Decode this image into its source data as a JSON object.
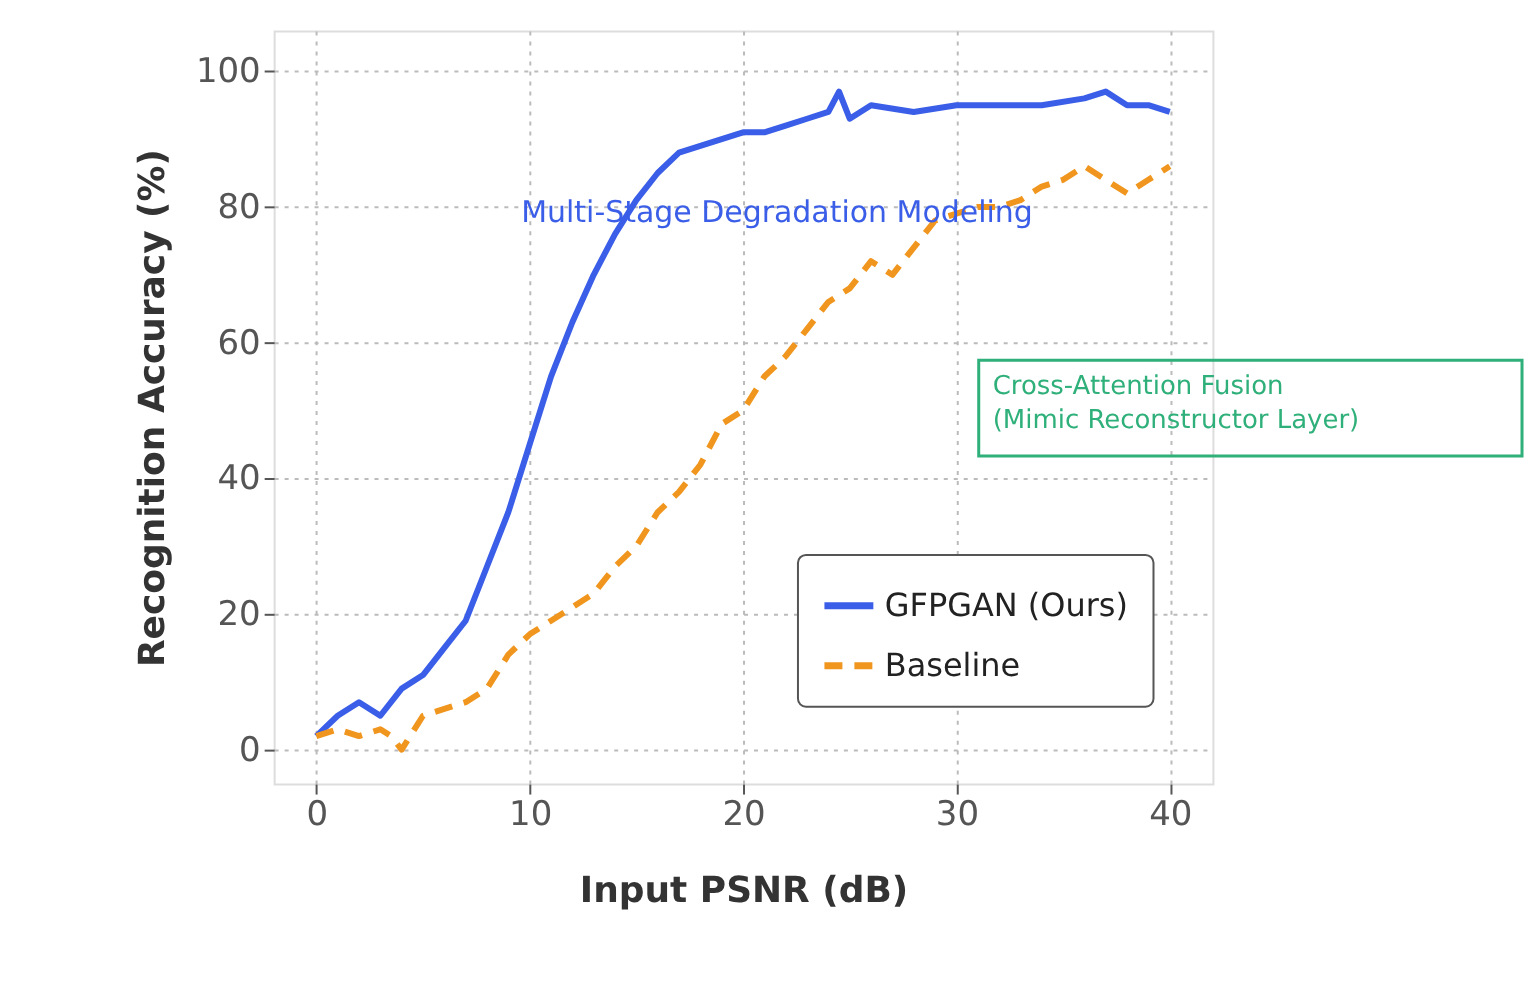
{
  "chart_data": {
    "type": "line",
    "xlabel": "Input PSNR (dB)",
    "ylabel": "Recognition Accuracy (%)",
    "xlim": [
      -2,
      42
    ],
    "ylim": [
      -5,
      106
    ],
    "xticks": [
      0,
      10,
      20,
      30,
      40
    ],
    "yticks": [
      0,
      20,
      40,
      60,
      80,
      100
    ],
    "grid": true,
    "legend": "bottom right",
    "marker": "none",
    "annotations": [
      "Multi-Stage Degradation Modeling",
      "Cross-Attention Fusion\n(Mimic Reconstructor Layer)"
    ],
    "series": [
      {
        "name": "GFPGAN (Ours)",
        "color": "#3a5ee8",
        "line_style": "solid",
        "x": [
          0,
          1,
          2,
          3,
          4,
          5,
          6,
          7,
          8,
          9,
          10,
          11,
          12,
          13,
          14,
          15,
          16,
          17,
          18,
          19,
          20,
          21,
          22,
          23,
          24,
          24.5,
          25,
          26,
          28,
          30,
          32,
          34,
          36,
          37,
          38,
          39,
          40
        ],
        "values": [
          2,
          5,
          7,
          5,
          9,
          11,
          15,
          19,
          27,
          35,
          45,
          55,
          63,
          70,
          76,
          81,
          85,
          88,
          89,
          90,
          91,
          91,
          92,
          93,
          94,
          97,
          93,
          95,
          94,
          95,
          95,
          95,
          96,
          97,
          95,
          95,
          94
        ]
      },
      {
        "name": "Baseline",
        "color": "#f0961e",
        "line_style": "dashed",
        "x": [
          0,
          1,
          2,
          3,
          3.5,
          4,
          5,
          6,
          7,
          8,
          9,
          10,
          11,
          12,
          13,
          14,
          15,
          16,
          17,
          18,
          19,
          20,
          21,
          22,
          23,
          24,
          25,
          26,
          27,
          28,
          29,
          30,
          31,
          32,
          33,
          34,
          35,
          36,
          37,
          38,
          39,
          40
        ],
        "values": [
          2,
          3,
          2,
          3,
          2,
          0,
          5,
          6,
          7,
          9,
          14,
          17,
          19,
          21,
          23,
          27,
          30,
          35,
          38,
          42,
          48,
          50,
          55,
          58,
          62,
          66,
          68,
          72,
          70,
          74,
          78,
          79,
          80,
          80,
          81,
          83,
          84,
          86,
          84,
          82,
          84,
          86
        ]
      }
    ]
  }
}
